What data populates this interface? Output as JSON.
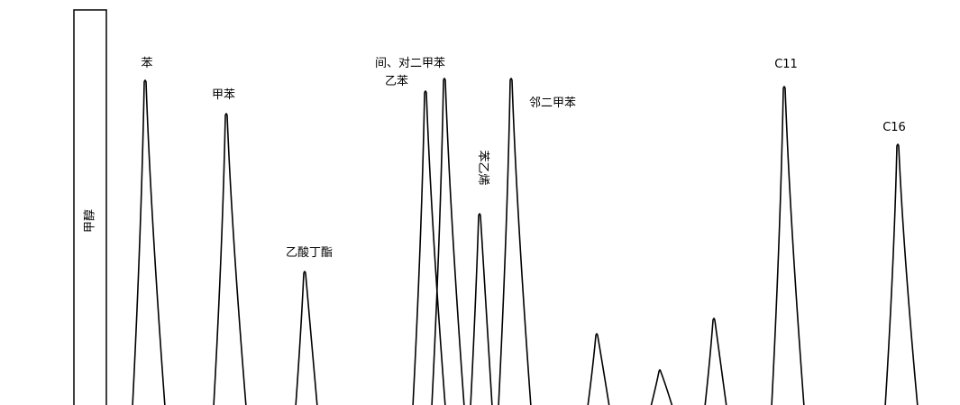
{
  "chart_data": {
    "type": "line",
    "title": "",
    "xlabel": "",
    "ylabel": "",
    "grid": false,
    "legend": "none",
    "line_color": "#000000",
    "background": "#ffffff",
    "solvent_peak_label": "甲醇",
    "peaks": [
      {
        "label": "苯",
        "apex": 161,
        "height": 361
      },
      {
        "label": "甲苯",
        "apex": 251,
        "height": 324
      },
      {
        "label": "乙酸丁酯",
        "apex": 338,
        "height": 149
      },
      {
        "label": "乙苯",
        "apex": 472,
        "height": 349
      },
      {
        "label": "间、对二甲苯",
        "apex": 493,
        "height": 363
      },
      {
        "label": "苯乙烯",
        "apex": 532,
        "height": 213
      },
      {
        "label": "邻二甲苯",
        "apex": 567,
        "height": 363
      },
      {
        "label": "",
        "apex": 662,
        "height": 80
      },
      {
        "label": "",
        "apex": 732,
        "height": 40
      },
      {
        "label": "",
        "apex": 792,
        "height": 97
      },
      {
        "label": "C11",
        "apex": 870,
        "height": 354
      },
      {
        "label": "C16",
        "apex": 996,
        "height": 290
      }
    ]
  }
}
